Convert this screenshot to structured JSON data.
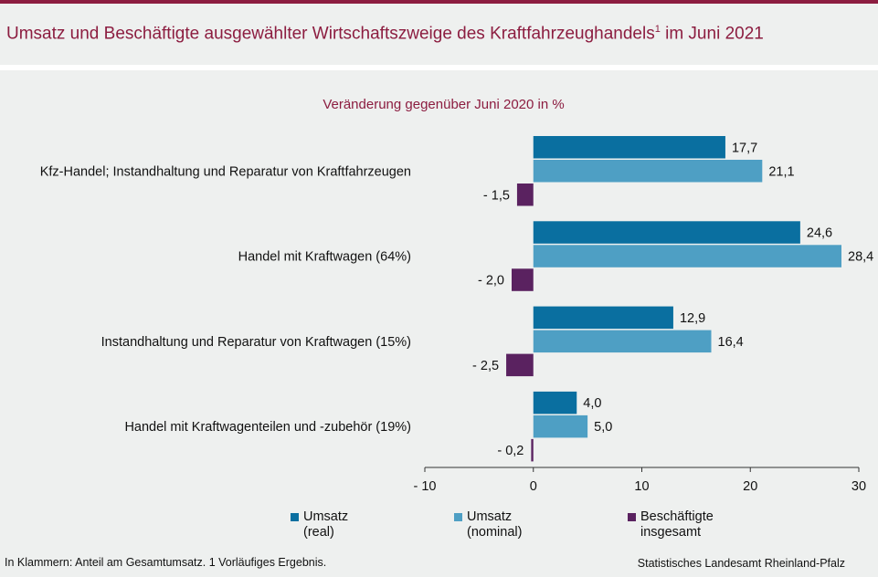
{
  "header": {
    "title": "Umsatz und Beschäftigte ausgewählter Wirtschaftszweige des Kraftfahrzeughandels",
    "title_sup": "1",
    "title_suffix": " im Juni 2021",
    "subtitle": "Veränderung gegenüber Juni 2020 in %"
  },
  "chart_data": {
    "type": "bar",
    "orientation": "horizontal",
    "categories": [
      "Kfz-Handel; Instandhaltung und Reparatur von Kraftfahrzeugen",
      "Handel mit Kraftwagen (64%)",
      "Instandhaltung und Reparatur von Kraftwagen (15%)",
      "Handel mit Kraftwagenteilen und -zubehör (19%)"
    ],
    "series": [
      {
        "name": "Umsatz\n(real)",
        "color": "#0a6fa0",
        "values": [
          17.7,
          24.6,
          12.9,
          4.0
        ],
        "labels": [
          "17,7",
          "24,6",
          "12,9",
          "4,0"
        ]
      },
      {
        "name": "Umsatz\n(nominal)",
        "color": "#4e9fc4",
        "values": [
          21.1,
          28.4,
          16.4,
          5.0
        ],
        "labels": [
          "21,1",
          "28,4",
          "16,4",
          "5,0"
        ]
      },
      {
        "name": "Beschäftigte\ninsgesamt",
        "color": "#5a2260",
        "values": [
          -1.5,
          -2.0,
          -2.5,
          -0.2
        ],
        "labels": [
          "- 1,5",
          "- 2,0",
          "- 2,5",
          "- 0,2"
        ]
      }
    ],
    "xlim": [
      -10,
      30
    ],
    "xticks": [
      -10,
      0,
      10,
      20,
      30
    ],
    "xtick_labels": [
      "- 10",
      "0",
      "10",
      "20",
      "30"
    ],
    "grid": false,
    "legend_position": "bottom"
  },
  "footer": {
    "footnote": "In Klammern: Anteil am Gesamtumsatz. 1 Vorläufiges  Ergebnis.",
    "source": "Statistisches Landesamt Rheinland-Pfalz"
  }
}
